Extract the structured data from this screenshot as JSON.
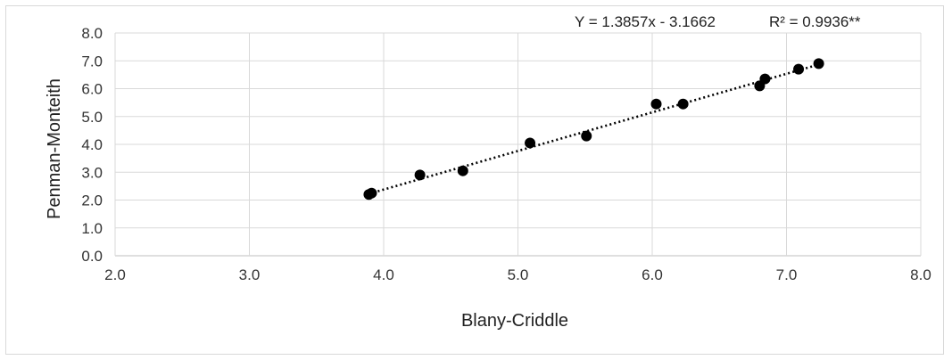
{
  "chart_data": {
    "type": "scatter",
    "xlabel": "Blany-Criddle",
    "ylabel": "Penman-Monteith",
    "xlim": [
      2.0,
      8.0
    ],
    "ylim": [
      0.0,
      8.0
    ],
    "xticks": [
      "2.0",
      "3.0",
      "4.0",
      "5.0",
      "6.0",
      "7.0",
      "8.0"
    ],
    "yticks": [
      "0.0",
      "1.0",
      "2.0",
      "3.0",
      "4.0",
      "5.0",
      "6.0",
      "7.0",
      "8.0"
    ],
    "grid": true,
    "legend": "none",
    "marker_color": "#000000",
    "series": [
      {
        "x": [
          3.89,
          3.91,
          4.27,
          4.59,
          5.09,
          5.51,
          6.03,
          6.23,
          6.8,
          6.84,
          7.09,
          7.24
        ],
        "y": [
          2.2,
          2.25,
          2.9,
          3.05,
          4.05,
          4.3,
          5.45,
          5.45,
          6.1,
          6.35,
          6.7,
          6.9
        ]
      }
    ],
    "trendline": {
      "style": "dotted",
      "slope": 1.3857,
      "intercept": -3.1662,
      "x_range": [
        3.89,
        7.24
      ]
    },
    "annotations": {
      "equation": "Y = 1.3857x - 3.1662",
      "r_squared": "R² = 0.9936**"
    }
  }
}
